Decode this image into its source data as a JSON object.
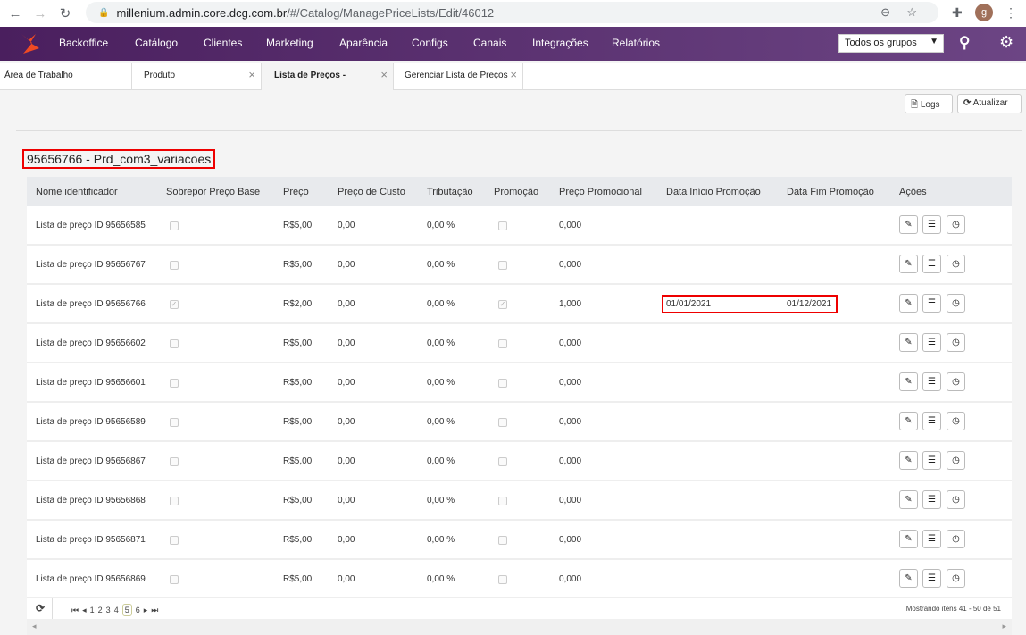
{
  "browser": {
    "url_host": "millenium.admin.core.dcg.com.br",
    "url_path": "/#/Catalog/ManagePriceLists/Edit/46012",
    "avatar_letter": "g"
  },
  "nav": {
    "items": [
      "Backoffice",
      "Catálogo",
      "Clientes",
      "Marketing",
      "Aparência",
      "Configs",
      "Canais",
      "Integrações",
      "Relatórios"
    ],
    "group_select": "Todos os grupos",
    "brand_color": "#5a2d72"
  },
  "tabs": [
    {
      "label": "Área de Trabalho"
    },
    {
      "label": "Produto"
    },
    {
      "label": "Lista de Preços -"
    },
    {
      "label": "Gerenciar Lista de Preços"
    }
  ],
  "toolbar": {
    "logs": "Logs",
    "refresh": "Atualizar"
  },
  "title": "95656766 - Prd_com3_variacoes",
  "table": {
    "headers": [
      "Nome identificador",
      "Sobrepor Preço Base",
      "Preço",
      "Preço de Custo",
      "Tributação",
      "Promoção",
      "Preço Promocional",
      "Data Início Promoção",
      "Data Fim Promoção",
      "Ações"
    ],
    "rows": [
      {
        "name": "Lista de preço ID 95656585",
        "override": false,
        "price": "R$5,00",
        "cost": "0,00",
        "tax": "0,00 %",
        "promo": false,
        "promo_price": "0,000",
        "start": "",
        "end": ""
      },
      {
        "name": "Lista de preço ID 95656767",
        "override": false,
        "price": "R$5,00",
        "cost": "0,00",
        "tax": "0,00 %",
        "promo": false,
        "promo_price": "0,000",
        "start": "",
        "end": ""
      },
      {
        "name": "Lista de preço ID 95656766",
        "override": true,
        "price": "R$2,00",
        "cost": "0,00",
        "tax": "0,00 %",
        "promo": true,
        "promo_price": "1,000",
        "start": "01/01/2021",
        "end": "01/12/2021"
      },
      {
        "name": "Lista de preço ID 95656602",
        "override": false,
        "price": "R$5,00",
        "cost": "0,00",
        "tax": "0,00 %",
        "promo": false,
        "promo_price": "0,000",
        "start": "",
        "end": ""
      },
      {
        "name": "Lista de preço ID 95656601",
        "override": false,
        "price": "R$5,00",
        "cost": "0,00",
        "tax": "0,00 %",
        "promo": false,
        "promo_price": "0,000",
        "start": "",
        "end": ""
      },
      {
        "name": "Lista de preço ID 95656589",
        "override": false,
        "price": "R$5,00",
        "cost": "0,00",
        "tax": "0,00 %",
        "promo": false,
        "promo_price": "0,000",
        "start": "",
        "end": ""
      },
      {
        "name": "Lista de preço ID 95656867",
        "override": false,
        "price": "R$5,00",
        "cost": "0,00",
        "tax": "0,00 %",
        "promo": false,
        "promo_price": "0,000",
        "start": "",
        "end": ""
      },
      {
        "name": "Lista de preço ID 95656868",
        "override": false,
        "price": "R$5,00",
        "cost": "0,00",
        "tax": "0,00 %",
        "promo": false,
        "promo_price": "0,000",
        "start": "",
        "end": ""
      },
      {
        "name": "Lista de preço ID 95656871",
        "override": false,
        "price": "R$5,00",
        "cost": "0,00",
        "tax": "0,00 %",
        "promo": false,
        "promo_price": "0,000",
        "start": "",
        "end": ""
      },
      {
        "name": "Lista de preço ID 95656869",
        "override": false,
        "price": "R$5,00",
        "cost": "0,00",
        "tax": "0,00 %",
        "promo": false,
        "promo_price": "0,000",
        "start": "",
        "end": ""
      }
    ]
  },
  "pager": {
    "pages": [
      "1",
      "2",
      "3",
      "4",
      "5",
      "6"
    ],
    "current": "5",
    "info": "Mostrando itens 41 - 50 de 51"
  }
}
